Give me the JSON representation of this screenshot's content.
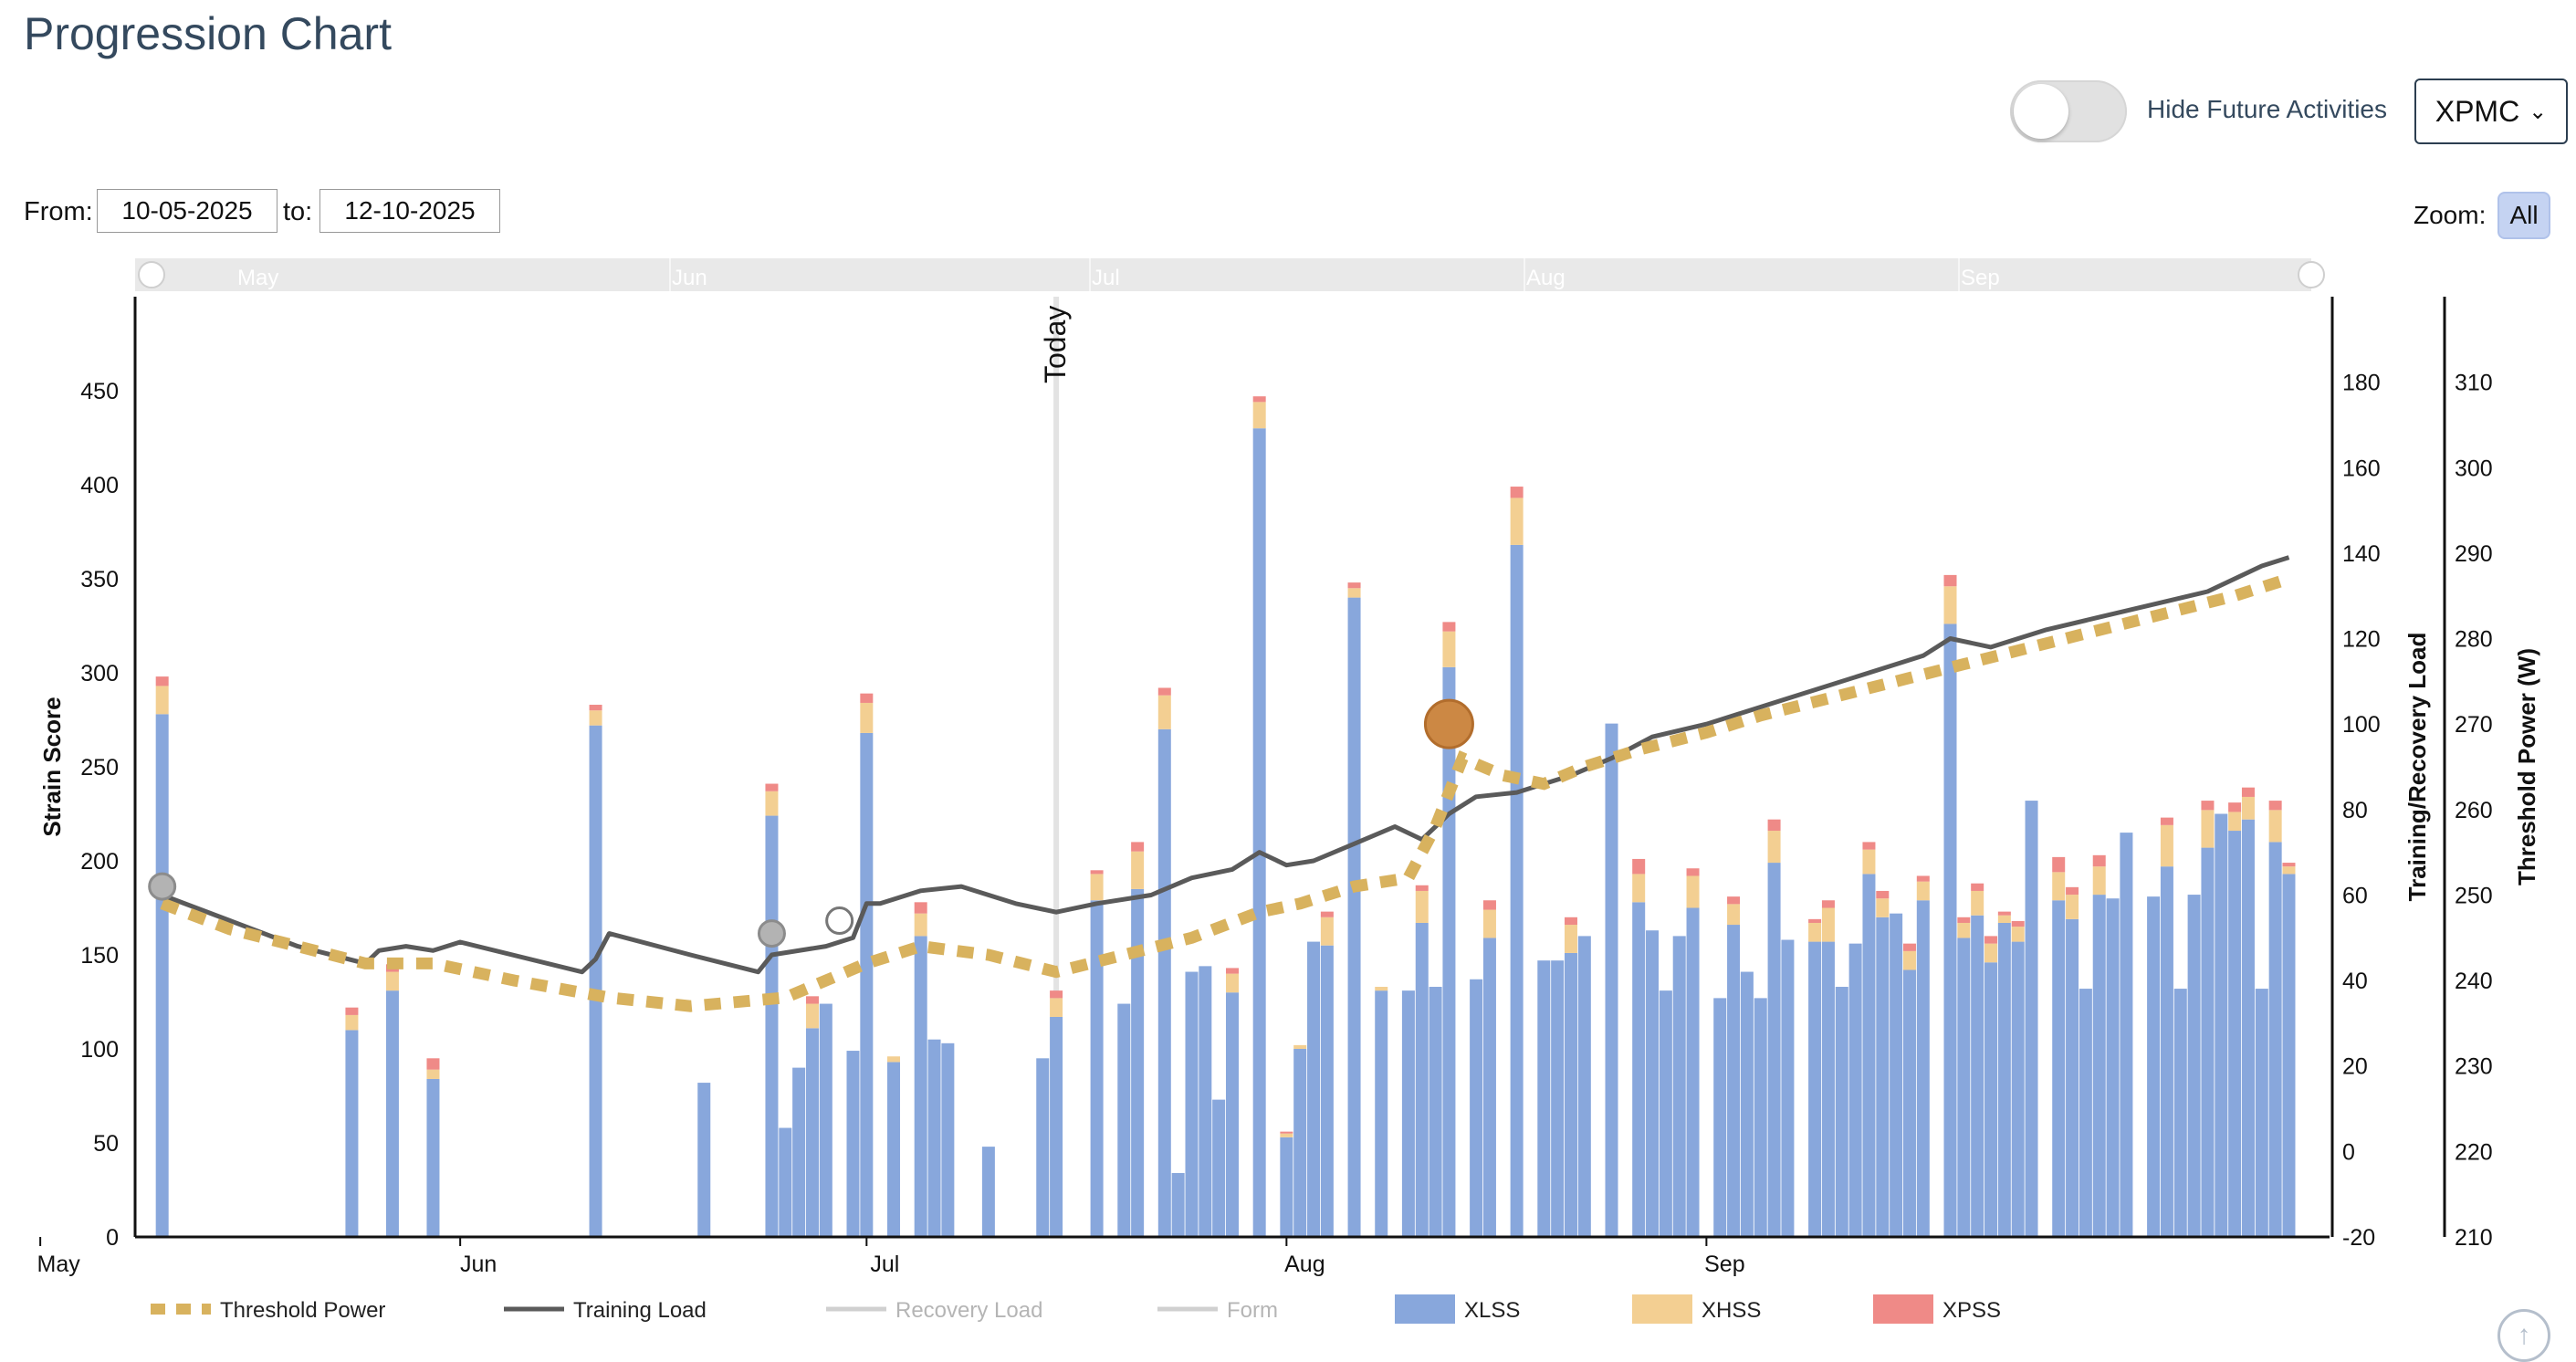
{
  "page": {
    "title": "Progression Chart"
  },
  "controls": {
    "toggle_label": "Hide Future Activities",
    "toggle_on": false,
    "dropdown_value": "XPMC",
    "from_label": "From:",
    "from_value": "10-05-2025",
    "to_label": "to:",
    "to_value": "12-10-2025",
    "zoom_label": "Zoom:",
    "zoom_value": "All"
  },
  "chart_data": {
    "type": "bar",
    "x_range": [
      "2025-05-10",
      "2025-10-12"
    ],
    "today_date": "2025-07-15",
    "today_label": "Today",
    "month_labels": [
      {
        "label": "May",
        "date": "2025-05-01"
      },
      {
        "label": "Jun",
        "date": "2025-06-01"
      },
      {
        "label": "Jul",
        "date": "2025-07-01"
      },
      {
        "label": "Aug",
        "date": "2025-08-01"
      },
      {
        "label": "Sep",
        "date": "2025-09-01"
      }
    ],
    "axes": {
      "left": {
        "label": "Strain Score",
        "min": 0,
        "max": 500,
        "ticks": [
          0,
          50,
          100,
          150,
          200,
          250,
          300,
          350,
          400,
          450
        ]
      },
      "right1": {
        "label": "Training/Recovery Load",
        "min": -20,
        "max": 200,
        "ticks": [
          -20,
          0,
          20,
          40,
          60,
          80,
          100,
          120,
          140,
          160,
          180
        ]
      },
      "right2": {
        "label": "Threshold Power (W)",
        "min": 210,
        "max": 320,
        "ticks": [
          210,
          220,
          230,
          240,
          250,
          260,
          270,
          280,
          290,
          300,
          310
        ]
      }
    },
    "legend": [
      {
        "name": "Threshold Power",
        "color": "#d8b25e",
        "style": "dashed-line"
      },
      {
        "name": "Training Load",
        "color": "#5a5a5a",
        "style": "line"
      },
      {
        "name": "Recovery Load",
        "color": "#c8c8c8",
        "style": "line",
        "hidden": true
      },
      {
        "name": "Form",
        "color": "#c8c8c8",
        "style": "line",
        "hidden": true
      },
      {
        "name": "XLSS",
        "color": "#88a7dc",
        "style": "box"
      },
      {
        "name": "XHSS",
        "color": "#f3cf92",
        "style": "box"
      },
      {
        "name": "XPSS",
        "color": "#ef8a87",
        "style": "box"
      }
    ],
    "stack_series": [
      "XLSS",
      "XHSS",
      "XPSS"
    ],
    "bars": [
      [
        "2025-05-10",
        278,
        15,
        5
      ],
      [
        "2025-05-24",
        110,
        8,
        4
      ],
      [
        "2025-05-27",
        131,
        10,
        4
      ],
      [
        "2025-05-30",
        84,
        5,
        6
      ],
      [
        "2025-06-11",
        272,
        8,
        3
      ],
      [
        "2025-06-19",
        82,
        0,
        0
      ],
      [
        "2025-06-24",
        224,
        13,
        4
      ],
      [
        "2025-06-25",
        58,
        0,
        0
      ],
      [
        "2025-06-26",
        90,
        0,
        0
      ],
      [
        "2025-06-27",
        111,
        13,
        4
      ],
      [
        "2025-06-28",
        124,
        0,
        0
      ],
      [
        "2025-06-30",
        99,
        0,
        0
      ],
      [
        "2025-07-01",
        268,
        16,
        5
      ],
      [
        "2025-07-03",
        93,
        3,
        0
      ],
      [
        "2025-07-05",
        160,
        12,
        6
      ],
      [
        "2025-07-06",
        105,
        0,
        0
      ],
      [
        "2025-07-07",
        103,
        0,
        0
      ],
      [
        "2025-07-10",
        48,
        0,
        0
      ],
      [
        "2025-07-14",
        95,
        0,
        0
      ],
      [
        "2025-07-15",
        117,
        10,
        4
      ],
      [
        "2025-07-18",
        179,
        14,
        2
      ],
      [
        "2025-07-20",
        124,
        0,
        0
      ],
      [
        "2025-07-21",
        185,
        20,
        5
      ],
      [
        "2025-07-23",
        270,
        18,
        4
      ],
      [
        "2025-07-24",
        34,
        0,
        0
      ],
      [
        "2025-07-25",
        141,
        0,
        0
      ],
      [
        "2025-07-26",
        144,
        0,
        0
      ],
      [
        "2025-07-27",
        73,
        0,
        0
      ],
      [
        "2025-07-28",
        130,
        10,
        3
      ],
      [
        "2025-07-30",
        430,
        14,
        3
      ],
      [
        "2025-08-01",
        53,
        2,
        1
      ],
      [
        "2025-08-02",
        100,
        2,
        0
      ],
      [
        "2025-08-03",
        157,
        0,
        0
      ],
      [
        "2025-08-04",
        155,
        15,
        3
      ],
      [
        "2025-08-06",
        340,
        5,
        3
      ],
      [
        "2025-08-08",
        131,
        2,
        0
      ],
      [
        "2025-08-10",
        131,
        0,
        0
      ],
      [
        "2025-08-11",
        167,
        17,
        3
      ],
      [
        "2025-08-12",
        133,
        0,
        0
      ],
      [
        "2025-08-13",
        303,
        19,
        5
      ],
      [
        "2025-08-15",
        137,
        0,
        0
      ],
      [
        "2025-08-16",
        159,
        15,
        5
      ],
      [
        "2025-08-18",
        368,
        25,
        6
      ],
      [
        "2025-08-20",
        147,
        0,
        0
      ],
      [
        "2025-08-21",
        147,
        0,
        0
      ],
      [
        "2025-08-22",
        151,
        15,
        4
      ],
      [
        "2025-08-23",
        160,
        0,
        0
      ],
      [
        "2025-08-25",
        273,
        0,
        0
      ],
      [
        "2025-08-27",
        178,
        15,
        8
      ],
      [
        "2025-08-28",
        163,
        0,
        0
      ],
      [
        "2025-08-29",
        131,
        0,
        0
      ],
      [
        "2025-08-30",
        160,
        0,
        0
      ],
      [
        "2025-08-31",
        175,
        17,
        4
      ],
      [
        "2025-09-02",
        127,
        0,
        0
      ],
      [
        "2025-09-03",
        166,
        11,
        4
      ],
      [
        "2025-09-04",
        141,
        0,
        0
      ],
      [
        "2025-09-05",
        127,
        0,
        0
      ],
      [
        "2025-09-06",
        199,
        17,
        6
      ],
      [
        "2025-09-07",
        158,
        0,
        0
      ],
      [
        "2025-09-09",
        157,
        10,
        2
      ],
      [
        "2025-09-10",
        157,
        18,
        4
      ],
      [
        "2025-09-11",
        133,
        0,
        0
      ],
      [
        "2025-09-12",
        156,
        0,
        0
      ],
      [
        "2025-09-13",
        193,
        13,
        4
      ],
      [
        "2025-09-14",
        170,
        10,
        4
      ],
      [
        "2025-09-15",
        172,
        0,
        0
      ],
      [
        "2025-09-16",
        142,
        10,
        4
      ],
      [
        "2025-09-17",
        179,
        10,
        3
      ],
      [
        "2025-09-19",
        326,
        20,
        6
      ],
      [
        "2025-09-20",
        159,
        8,
        3
      ],
      [
        "2025-09-21",
        171,
        13,
        4
      ],
      [
        "2025-09-22",
        146,
        10,
        4
      ],
      [
        "2025-09-23",
        167,
        4,
        2
      ],
      [
        "2025-09-24",
        157,
        8,
        3
      ],
      [
        "2025-09-25",
        232,
        0,
        0
      ],
      [
        "2025-09-27",
        179,
        15,
        8
      ],
      [
        "2025-09-28",
        169,
        13,
        4
      ],
      [
        "2025-09-29",
        132,
        0,
        0
      ],
      [
        "2025-09-30",
        182,
        15,
        6
      ],
      [
        "2025-10-01",
        180,
        0,
        0
      ],
      [
        "2025-10-02",
        215,
        0,
        0
      ],
      [
        "2025-10-04",
        181,
        0,
        0
      ],
      [
        "2025-10-05",
        197,
        22,
        4
      ],
      [
        "2025-10-06",
        132,
        0,
        0
      ],
      [
        "2025-10-07",
        182,
        0,
        0
      ],
      [
        "2025-10-08",
        207,
        20,
        5
      ],
      [
        "2025-10-09",
        225,
        0,
        0
      ],
      [
        "2025-10-10",
        216,
        10,
        5
      ],
      [
        "2025-10-11",
        222,
        12,
        5
      ],
      [
        "2025-10-12",
        132,
        0,
        0
      ],
      [
        "2025-10-13",
        210,
        17,
        5
      ],
      [
        "2025-10-14",
        193,
        4,
        2
      ]
    ],
    "training_load": [
      [
        "2025-05-10",
        60
      ],
      [
        "2025-05-15",
        54
      ],
      [
        "2025-05-20",
        48
      ],
      [
        "2025-05-25",
        44
      ],
      [
        "2025-05-26",
        47
      ],
      [
        "2025-05-28",
        48
      ],
      [
        "2025-05-30",
        47
      ],
      [
        "2025-06-01",
        49
      ],
      [
        "2025-06-10",
        42
      ],
      [
        "2025-06-11",
        45
      ],
      [
        "2025-06-12",
        51
      ],
      [
        "2025-06-18",
        46
      ],
      [
        "2025-06-23",
        42
      ],
      [
        "2025-06-24",
        46
      ],
      [
        "2025-06-28",
        48
      ],
      [
        "2025-06-30",
        50
      ],
      [
        "2025-07-01",
        58
      ],
      [
        "2025-07-02",
        58
      ],
      [
        "2025-07-05",
        61
      ],
      [
        "2025-07-08",
        62
      ],
      [
        "2025-07-12",
        58
      ],
      [
        "2025-07-15",
        56
      ],
      [
        "2025-07-18",
        58
      ],
      [
        "2025-07-22",
        60
      ],
      [
        "2025-07-25",
        64
      ],
      [
        "2025-07-28",
        66
      ],
      [
        "2025-07-30",
        70
      ],
      [
        "2025-08-01",
        67
      ],
      [
        "2025-08-03",
        68
      ],
      [
        "2025-08-06",
        72
      ],
      [
        "2025-08-09",
        76
      ],
      [
        "2025-08-11",
        73
      ],
      [
        "2025-08-13",
        79
      ],
      [
        "2025-08-15",
        83
      ],
      [
        "2025-08-18",
        84
      ],
      [
        "2025-08-22",
        88
      ],
      [
        "2025-08-25",
        92
      ],
      [
        "2025-08-28",
        97
      ],
      [
        "2025-09-01",
        100
      ],
      [
        "2025-09-05",
        104
      ],
      [
        "2025-09-09",
        108
      ],
      [
        "2025-09-13",
        112
      ],
      [
        "2025-09-17",
        116
      ],
      [
        "2025-09-19",
        120
      ],
      [
        "2025-09-22",
        118
      ],
      [
        "2025-09-26",
        122
      ],
      [
        "2025-09-30",
        125
      ],
      [
        "2025-10-04",
        128
      ],
      [
        "2025-10-08",
        131
      ],
      [
        "2025-10-12",
        137
      ],
      [
        "2025-10-14",
        139
      ]
    ],
    "threshold_power": [
      [
        "2025-05-10",
        249
      ],
      [
        "2025-05-15",
        246
      ],
      [
        "2025-05-20",
        244
      ],
      [
        "2025-05-25",
        242
      ],
      [
        "2025-05-30",
        242
      ],
      [
        "2025-06-05",
        240
      ],
      [
        "2025-06-12",
        238
      ],
      [
        "2025-06-18",
        237
      ],
      [
        "2025-06-25",
        238
      ],
      [
        "2025-07-01",
        242
      ],
      [
        "2025-07-05",
        244
      ],
      [
        "2025-07-10",
        243
      ],
      [
        "2025-07-15",
        241
      ],
      [
        "2025-07-20",
        243
      ],
      [
        "2025-07-25",
        245
      ],
      [
        "2025-07-30",
        248
      ],
      [
        "2025-08-02",
        249
      ],
      [
        "2025-08-06",
        251
      ],
      [
        "2025-08-10",
        252
      ],
      [
        "2025-08-12",
        258
      ],
      [
        "2025-08-14",
        266
      ],
      [
        "2025-08-17",
        264
      ],
      [
        "2025-08-20",
        263
      ],
      [
        "2025-08-23",
        265
      ],
      [
        "2025-08-27",
        267
      ],
      [
        "2025-09-01",
        269
      ],
      [
        "2025-09-05",
        271
      ],
      [
        "2025-09-10",
        273
      ],
      [
        "2025-09-15",
        275
      ],
      [
        "2025-09-20",
        277
      ],
      [
        "2025-09-25",
        279
      ],
      [
        "2025-09-30",
        281
      ],
      [
        "2025-10-05",
        283
      ],
      [
        "2025-10-10",
        285
      ],
      [
        "2025-10-14",
        287
      ]
    ],
    "markers": [
      {
        "date": "2025-05-10",
        "power": 251,
        "style": "gray"
      },
      {
        "date": "2025-06-24",
        "power": 245.5,
        "style": "gray"
      },
      {
        "date": "2025-06-29",
        "power": 247,
        "style": "white"
      },
      {
        "date": "2025-08-13",
        "power": 270,
        "style": "orange"
      }
    ],
    "navigator_labels": [
      "May",
      "Jun",
      "Jul",
      "Aug",
      "Sep"
    ]
  }
}
